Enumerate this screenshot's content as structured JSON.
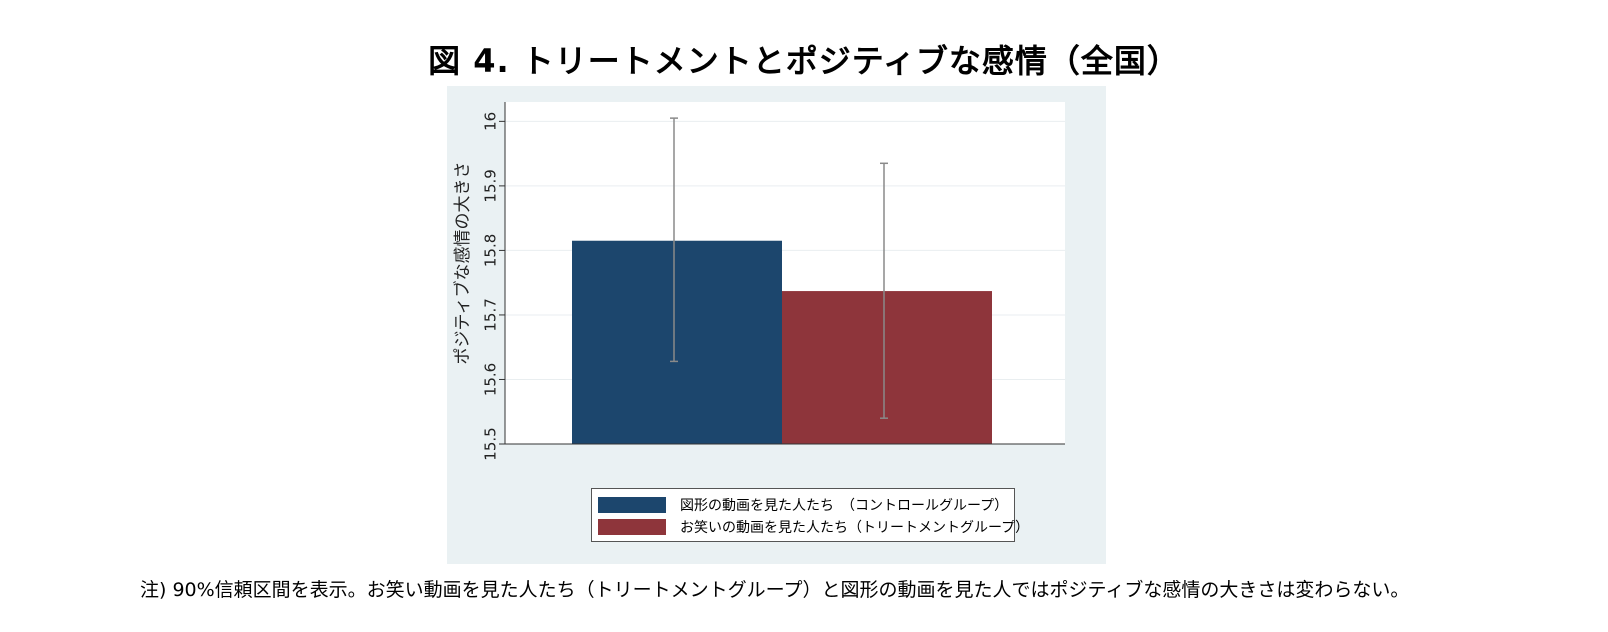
{
  "title": "図 4. トリートメントとポジティブな感情（全国）",
  "note": "注) 90%信頼区間を表示。お笑い動画を見た人たち（トリートメントグループ）と図形の動画を見た人ではポジティブな感情の大きさは変わらない。",
  "chart_data": {
    "type": "bar",
    "ylabel": "ポジティブな感情の大きさ",
    "ylim": [
      15.5,
      16.03
    ],
    "yticks": [
      "15.5",
      "15.6",
      "15.7",
      "15.8",
      "15.9",
      "16"
    ],
    "grid": true,
    "legend_position": "bottom",
    "series": [
      {
        "name": "図形の動画を見た人たち　（コントロールグループ）",
        "value": 15.815,
        "ci_low": 15.628,
        "ci_high": 16.005,
        "color": "#1c466d"
      },
      {
        "name": "お笑いの動画を見た人たち（トリートメントグループ）",
        "value": 15.737,
        "ci_low": 15.54,
        "ci_high": 15.935,
        "color": "#8e353b"
      }
    ]
  },
  "colors": {
    "panel_bg": "#eaf1f3",
    "errorbar": "#8a8a8a"
  }
}
